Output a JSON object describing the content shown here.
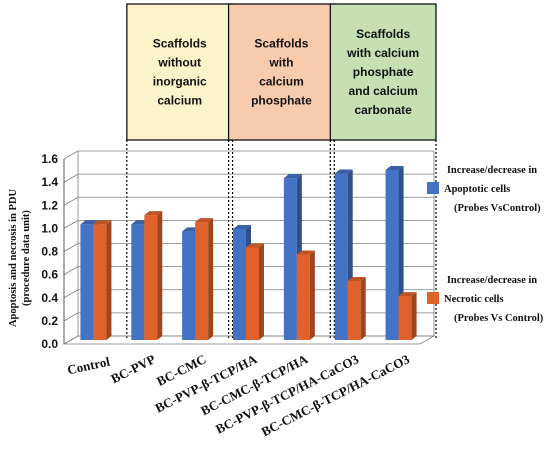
{
  "chart_data": {
    "type": "bar",
    "ylabel": "Apoptosis and necrosis in PDU",
    "ylabel_sub": "(procedure data unit)",
    "ylim": [
      0,
      1.6
    ],
    "yticks": [
      "0.0",
      "0.2",
      "0.4",
      "0.6",
      "0.8",
      "1.0",
      "1.2",
      "1.4",
      "1.6"
    ],
    "grid": true,
    "categories": [
      "Control",
      "BC-PVP",
      "BC-CMC",
      "BC-PVP-β-TCP/HA",
      "BC-CMC-β-TCP/HA",
      "BC-PVP-β-TCP/HA-CaCO3",
      "BC-CMC-β-TCP/HA-CaCO3"
    ],
    "series": [
      {
        "name": "Apoptotic cells",
        "color": "#4472C4",
        "values": [
          1.0,
          1.0,
          0.94,
          0.96,
          1.4,
          1.44,
          1.47
        ]
      },
      {
        "name": "Necrotic cells",
        "color": "#E0622A",
        "values": [
          1.0,
          1.08,
          1.02,
          0.8,
          0.74,
          0.51,
          0.38
        ]
      }
    ],
    "legend": [
      {
        "line1": "Increase/decrease in",
        "line2": "Apoptotic cells",
        "line3": "(Probes VsControl)",
        "color": "#4472C4"
      },
      {
        "line1": "Increase/decrease in",
        "line2": "Necrotic cells",
        "line3": "(Probes Vs Control)",
        "color": "#E0622A"
      }
    ],
    "legend_position": "right",
    "groups": [
      {
        "lines": [
          "Scaffolds",
          "without",
          "inorganic",
          "calcium"
        ],
        "fill": "#FDF3C9",
        "categories": [
          1,
          2
        ]
      },
      {
        "lines": [
          "Scaffolds",
          "with",
          "calcium",
          "phosphate"
        ],
        "fill": "#F8CBAD",
        "categories": [
          3,
          4
        ]
      },
      {
        "lines": [
          "Scaffolds",
          "with calcium",
          "phosphate",
          "and calcium",
          "carbonate"
        ],
        "fill": "#C6E0B4",
        "categories": [
          5,
          6
        ]
      }
    ]
  }
}
